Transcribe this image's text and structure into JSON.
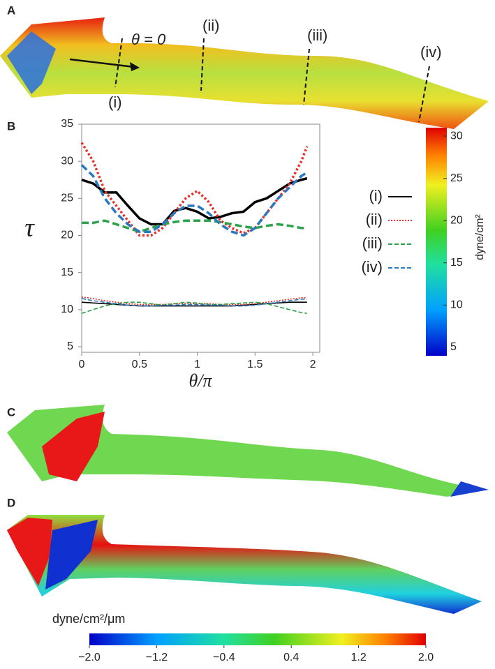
{
  "panel_labels": [
    "A",
    "B",
    "C",
    "D"
  ],
  "panel_a": {
    "angle_label": "θ = 0",
    "sections": [
      "(i)",
      "(ii)",
      "(iii)",
      "(iv)"
    ]
  },
  "chart_data": {
    "type": "line",
    "ylabel": "τ",
    "xlabel": "θ/π",
    "xlim": [
      0,
      2.06
    ],
    "ylim": [
      4.25,
      35
    ],
    "xticks": [
      0,
      0.5,
      1,
      1.5,
      2
    ],
    "yticks": [
      5,
      10,
      15,
      20,
      25,
      30,
      35
    ],
    "x": [
      0,
      0.1,
      0.2,
      0.3,
      0.4,
      0.5,
      0.6,
      0.7,
      0.8,
      0.9,
      1.0,
      1.1,
      1.2,
      1.3,
      1.4,
      1.5,
      1.6,
      1.7,
      1.8,
      1.9,
      1.95
    ],
    "series": [
      {
        "name": "(i)",
        "color": "#000000",
        "line_style": "solid",
        "thick": true,
        "values": [
          27.5,
          27,
          25.8,
          25.8,
          24,
          22.3,
          21.5,
          21.5,
          23.3,
          23.7,
          23.2,
          22.3,
          22.5,
          23,
          23.2,
          24.5,
          25,
          26,
          27,
          27.5,
          27.7
        ]
      },
      {
        "name": "(ii)",
        "color": "#e8302a",
        "line_style": "dotted",
        "thick": true,
        "values": [
          32.5,
          30,
          26,
          24,
          22,
          20,
          20,
          21,
          23,
          25,
          26,
          24.5,
          22,
          21,
          20.3,
          21,
          23,
          25,
          27,
          30,
          32
        ]
      },
      {
        "name": "(iii)",
        "color": "#2ca24a",
        "line_style": "dashed",
        "thick": true,
        "values": [
          21.7,
          21.7,
          22,
          21.5,
          21,
          20.5,
          21,
          21.5,
          21.8,
          22,
          22,
          22,
          21.8,
          21.5,
          21.2,
          21,
          21.3,
          21.5,
          21.3,
          21,
          21
        ]
      },
      {
        "name": "(iv)",
        "color": "#2a78c0",
        "line_style": "dashed",
        "thick": true,
        "values": [
          29.5,
          28,
          25,
          23,
          21.5,
          20.5,
          20.5,
          21.5,
          23,
          24,
          24,
          23,
          21.5,
          20.5,
          20,
          21,
          23,
          25,
          26.5,
          28,
          28.5
        ]
      },
      {
        "color": "#000000",
        "line_style": "solid",
        "thick": false,
        "values": [
          11,
          10.9,
          10.8,
          10.7,
          10.6,
          10.5,
          10.5,
          10.5,
          10.5,
          10.5,
          10.5,
          10.5,
          10.5,
          10.5,
          10.6,
          10.7,
          10.8,
          10.9,
          11,
          11,
          11
        ]
      },
      {
        "color": "#e8302a",
        "line_style": "dotted",
        "thick": false,
        "values": [
          11.7,
          11.5,
          11.2,
          11,
          10.8,
          10.7,
          10.7,
          10.7,
          10.8,
          10.8,
          10.8,
          10.8,
          10.7,
          10.7,
          10.7,
          10.8,
          11,
          11.2,
          11.4,
          11.6,
          11.6
        ]
      },
      {
        "color": "#2ca24a",
        "line_style": "dashed",
        "thick": false,
        "values": [
          9.5,
          10,
          10.5,
          10.8,
          11,
          11,
          10.8,
          10.6,
          10.8,
          11,
          10.9,
          10.7,
          10.7,
          10.8,
          10.9,
          11,
          10.8,
          10.4,
          10,
          9.6,
          9.5
        ]
      },
      {
        "color": "#2a78c0",
        "line_style": "dashed",
        "thick": false,
        "values": [
          11.5,
          11.2,
          11,
          10.8,
          10.6,
          10.5,
          10.5,
          10.6,
          10.6,
          10.7,
          10.7,
          10.6,
          10.6,
          10.5,
          10.5,
          10.6,
          10.8,
          11,
          11.2,
          11.4,
          11.4
        ]
      }
    ]
  },
  "colorbar_wss": {
    "label": "dyne/cm²",
    "lim": [
      4,
      31
    ],
    "ticks": [
      5,
      10,
      15,
      20,
      25,
      30
    ]
  },
  "colorbar_gradient": {
    "label": "dyne/cm²/μm",
    "lim": [
      -2,
      2
    ],
    "ticks": [
      {
        "value": -2,
        "label": "−2.0"
      },
      {
        "value": -1.2,
        "label": "−1.2"
      },
      {
        "value": -0.4,
        "label": "−0.4"
      },
      {
        "value": 0.4,
        "label": "0.4"
      },
      {
        "value": 1.2,
        "label": "1.2"
      },
      {
        "value": 2,
        "label": "2.0"
      }
    ]
  }
}
